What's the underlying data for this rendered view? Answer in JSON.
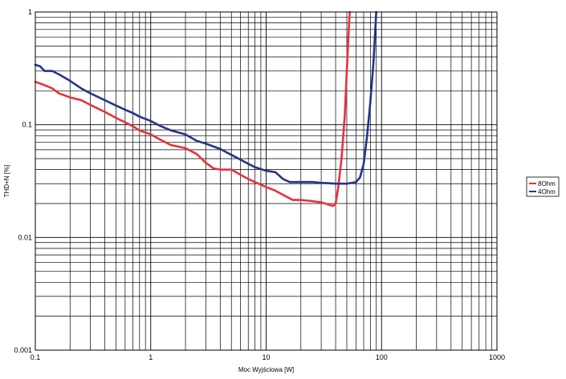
{
  "chart_data": {
    "type": "line",
    "xlabel": "Moc Wyjściowa [W]",
    "ylabel": "THD+N [%]",
    "x_scale": "log",
    "y_scale": "log",
    "xlim": [
      0.1,
      1000
    ],
    "ylim": [
      0.001,
      1
    ],
    "x_ticks": [
      "0.1",
      "1",
      "10",
      "100",
      "1000"
    ],
    "y_ticks": [
      "1",
      "0.1",
      "0.01",
      "0.001"
    ],
    "grid": true,
    "legend_position": "right",
    "series": [
      {
        "name": "8Ohm",
        "color": "#e8323a",
        "points": [
          [
            0.1,
            0.24
          ],
          [
            0.12,
            0.225
          ],
          [
            0.14,
            0.21
          ],
          [
            0.16,
            0.19
          ],
          [
            0.2,
            0.175
          ],
          [
            0.25,
            0.165
          ],
          [
            0.3,
            0.15
          ],
          [
            0.4,
            0.13
          ],
          [
            0.5,
            0.115
          ],
          [
            0.6,
            0.105
          ],
          [
            0.7,
            0.097
          ],
          [
            0.8,
            0.089
          ],
          [
            1.0,
            0.082
          ],
          [
            1.2,
            0.074
          ],
          [
            1.5,
            0.066
          ],
          [
            2.0,
            0.062
          ],
          [
            2.5,
            0.055
          ],
          [
            3.0,
            0.046
          ],
          [
            3.5,
            0.041
          ],
          [
            4.0,
            0.04
          ],
          [
            5.0,
            0.04
          ],
          [
            6.0,
            0.036
          ],
          [
            7.0,
            0.033
          ],
          [
            8.0,
            0.031
          ],
          [
            10.0,
            0.028
          ],
          [
            12.0,
            0.026
          ],
          [
            15.0,
            0.023
          ],
          [
            17.0,
            0.0215
          ],
          [
            20.0,
            0.0215
          ],
          [
            25.0,
            0.021
          ],
          [
            30.0,
            0.0205
          ],
          [
            35.0,
            0.0195
          ],
          [
            38.0,
            0.019
          ],
          [
            40.0,
            0.02
          ],
          [
            42.0,
            0.027
          ],
          [
            45.0,
            0.05
          ],
          [
            48.0,
            0.12
          ],
          [
            50.0,
            0.3
          ],
          [
            52.0,
            0.7
          ],
          [
            53.0,
            1.0
          ]
        ]
      },
      {
        "name": "4Ohm",
        "color": "#26338a",
        "points": [
          [
            0.1,
            0.34
          ],
          [
            0.11,
            0.33
          ],
          [
            0.12,
            0.3
          ],
          [
            0.14,
            0.3
          ],
          [
            0.16,
            0.28
          ],
          [
            0.2,
            0.245
          ],
          [
            0.25,
            0.21
          ],
          [
            0.3,
            0.19
          ],
          [
            0.4,
            0.165
          ],
          [
            0.5,
            0.148
          ],
          [
            0.6,
            0.136
          ],
          [
            0.7,
            0.127
          ],
          [
            0.8,
            0.118
          ],
          [
            1.0,
            0.108
          ],
          [
            1.2,
            0.098
          ],
          [
            1.5,
            0.089
          ],
          [
            2.0,
            0.082
          ],
          [
            2.5,
            0.072
          ],
          [
            3.0,
            0.068
          ],
          [
            4.0,
            0.061
          ],
          [
            5.0,
            0.054
          ],
          [
            6.0,
            0.049
          ],
          [
            7.0,
            0.045
          ],
          [
            8.0,
            0.042
          ],
          [
            10.0,
            0.039
          ],
          [
            12.0,
            0.038
          ],
          [
            14.0,
            0.033
          ],
          [
            16.0,
            0.031
          ],
          [
            20.0,
            0.031
          ],
          [
            25.0,
            0.031
          ],
          [
            30.0,
            0.0305
          ],
          [
            40.0,
            0.03
          ],
          [
            50.0,
            0.03
          ],
          [
            60.0,
            0.031
          ],
          [
            65.0,
            0.034
          ],
          [
            70.0,
            0.045
          ],
          [
            75.0,
            0.08
          ],
          [
            80.0,
            0.16
          ],
          [
            85.0,
            0.35
          ],
          [
            90.0,
            1.0
          ]
        ]
      }
    ]
  }
}
